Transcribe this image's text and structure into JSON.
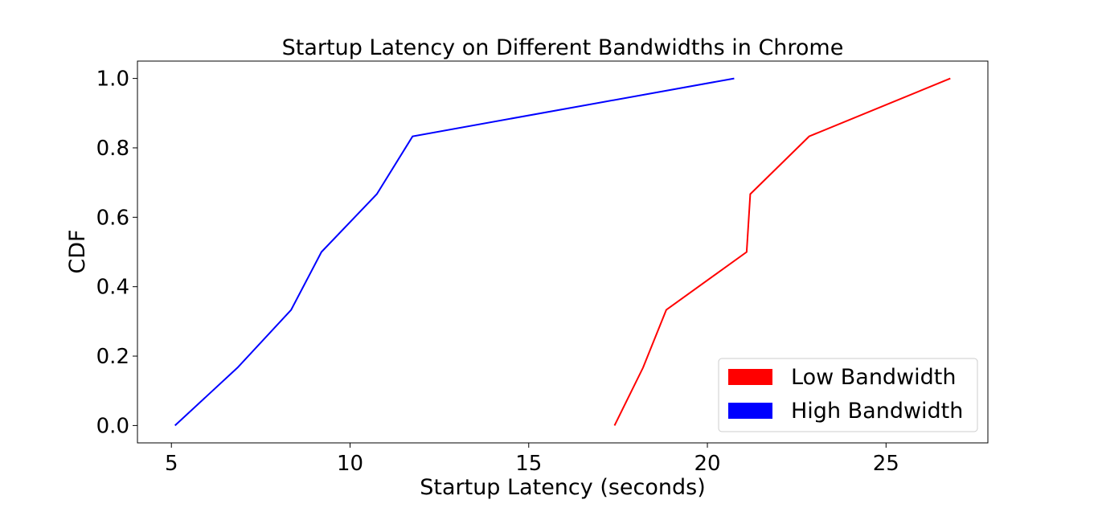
{
  "chart_data": {
    "type": "line",
    "title": "Startup Latency on Different Bandwidths in Chrome",
    "xlabel": "Startup Latency (seconds)",
    "ylabel": "CDF",
    "xlim": [
      4.05,
      27.85
    ],
    "ylim": [
      -0.05,
      1.05
    ],
    "xticks": [
      5,
      10,
      15,
      20,
      25
    ],
    "yticks": [
      0.0,
      0.2,
      0.4,
      0.6,
      0.8,
      1.0
    ],
    "xtick_labels": [
      "5",
      "10",
      "15",
      "20",
      "25"
    ],
    "ytick_labels": [
      "0.0",
      "0.2",
      "0.4",
      "0.6",
      "0.8",
      "1.0"
    ],
    "grid": false,
    "legend_position": "lower-right",
    "series": [
      {
        "name": "Low Bandwidth",
        "color": "#ff0000",
        "x": [
          17.4,
          18.2,
          18.85,
          21.1,
          21.2,
          22.85,
          26.8
        ],
        "y": [
          0.0,
          0.1667,
          0.3333,
          0.5,
          0.6667,
          0.8333,
          1.0
        ]
      },
      {
        "name": "High Bandwidth",
        "color": "#0000ff",
        "x": [
          5.1,
          6.85,
          8.35,
          9.2,
          10.75,
          11.75,
          20.75
        ],
        "y": [
          0.0,
          0.1667,
          0.3333,
          0.5,
          0.6667,
          0.8333,
          1.0
        ]
      }
    ]
  }
}
